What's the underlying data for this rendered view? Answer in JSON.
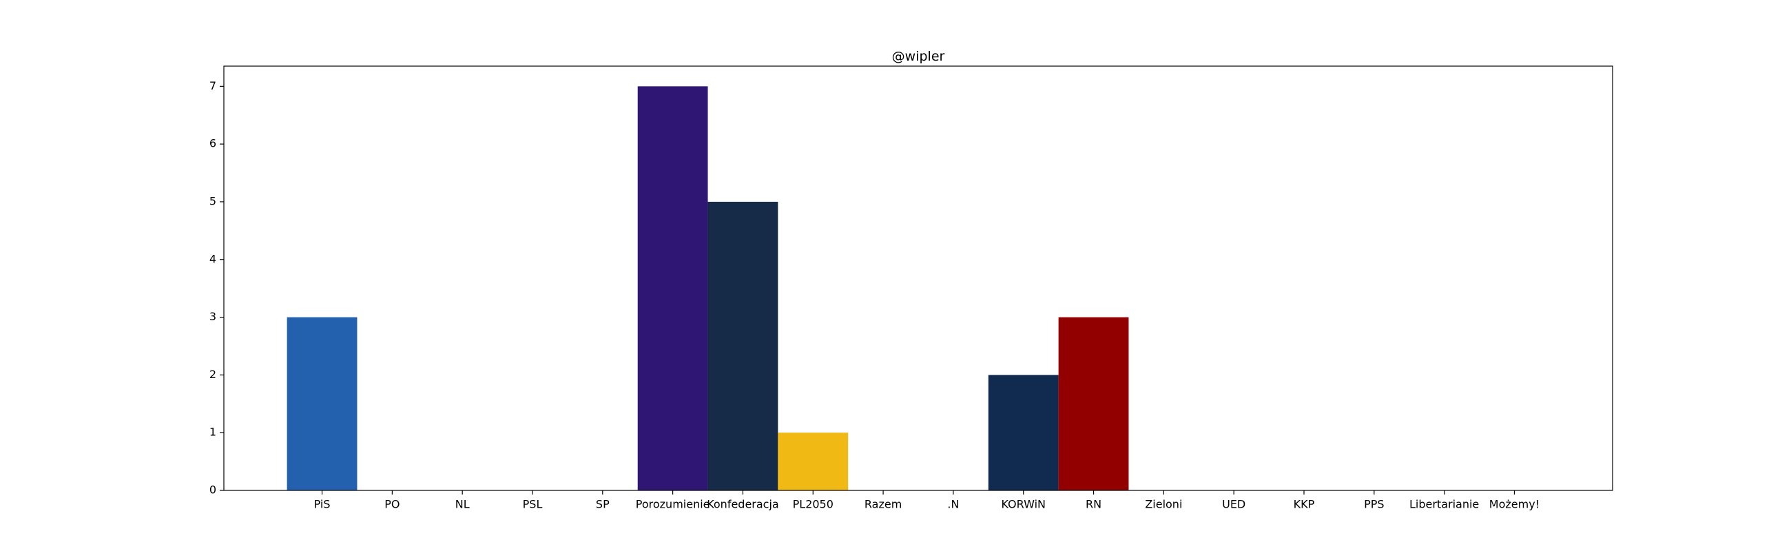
{
  "chart_data": {
    "type": "bar",
    "title": "@wipler",
    "xlabel": "",
    "ylabel": "",
    "categories": [
      "PiS",
      "PO",
      "NL",
      "PSL",
      "SP",
      "Porozumienie",
      "Konfederacja",
      "PL2050",
      "Razem",
      ".N",
      "KORWiN",
      "RN",
      "Zieloni",
      "UED",
      "KKP",
      "PPS",
      "Libertarianie",
      "Możemy!"
    ],
    "values": [
      3,
      0,
      0,
      0,
      0,
      7,
      5,
      1,
      0,
      0,
      2,
      3,
      0,
      0,
      0,
      0,
      0,
      0
    ],
    "colors": [
      "#2361ae",
      "#ffffff",
      "#ffffff",
      "#ffffff",
      "#ffffff",
      "#2f1674",
      "#162b48",
      "#f0b913",
      "#ffffff",
      "#ffffff",
      "#112b50",
      "#920000",
      "#ffffff",
      "#ffffff",
      "#ffffff",
      "#ffffff",
      "#ffffff",
      "#ffffff"
    ],
    "xlim": [
      -1.4,
      18.4
    ],
    "ylim": [
      0,
      7.35
    ],
    "yticks": [
      0,
      1,
      2,
      3,
      4,
      5,
      6,
      7
    ],
    "grid": false,
    "legend": "none"
  }
}
